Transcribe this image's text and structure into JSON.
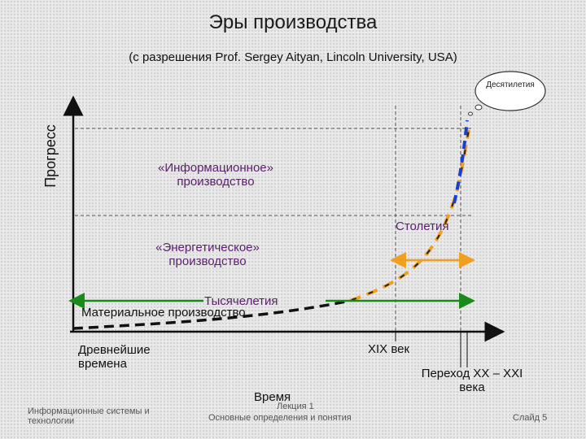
{
  "slide": {
    "title": "Эры производства",
    "subtitle": "(с разрешения Prof. Sergey Aityan, Lincoln University, USA)",
    "y_axis_label": "Прогресс",
    "x_axis_label": "Время",
    "eras": {
      "information": "«Информационное» производство",
      "energy": "«Энергетическое» производство",
      "material": "Материальное производство"
    },
    "spans": {
      "decades": "Десятилетия",
      "centuries": "Столетия",
      "millennia": "Тысячелетия"
    },
    "time_labels": {
      "ancient": "Древнейшие времена",
      "century19": "XIX век",
      "transition": "Переход XX – XXI века"
    },
    "footer": {
      "left": "Информационные системы и технологии",
      "center_top": "Лекция 1",
      "center_bottom": "Основные определения и понятия",
      "right": "Слайд 5"
    },
    "colors": {
      "curve_black": "#111111",
      "curve_orange": "#f0a020",
      "curve_blue": "#1a3fd0",
      "arrow_green": "#1a8a1a",
      "arrow_orange": "#f0a020",
      "text_purple": "#5a1f6b"
    }
  }
}
